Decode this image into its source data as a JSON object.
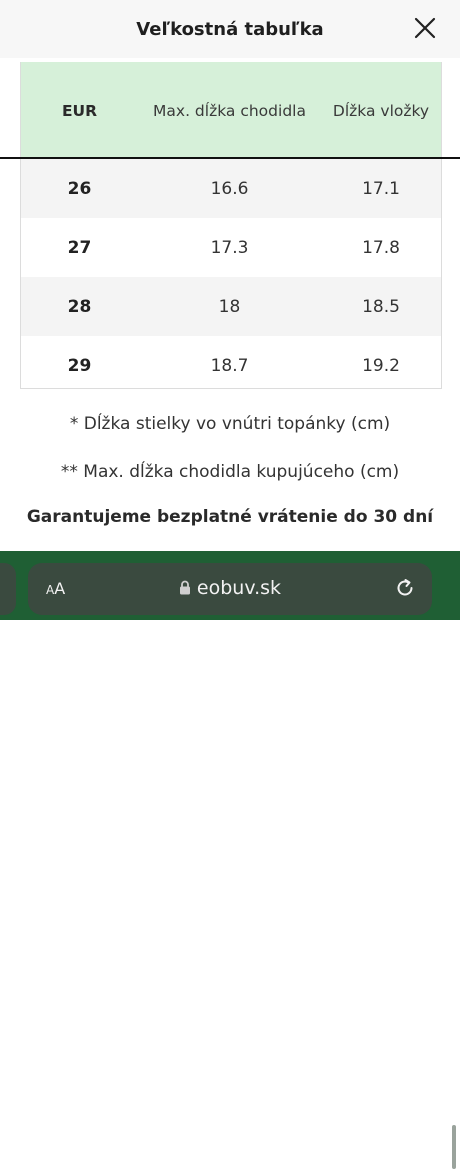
{
  "header": {
    "title": "Veľkostná tabuľka",
    "close_icon": "close-icon"
  },
  "table": {
    "columns": [
      "EUR",
      "Max. dĺžka chodidla",
      "Dĺžka vložky"
    ],
    "rows": [
      [
        "26",
        "16.6",
        "17.1"
      ],
      [
        "27",
        "17.3",
        "17.8"
      ],
      [
        "28",
        "18",
        "18.5"
      ],
      [
        "29",
        "18.7",
        "19.2"
      ]
    ],
    "header_bg": "#d6f0d9"
  },
  "notes": {
    "insole_note": "* Dĺžka stielky vo vnútri topánky (cm)",
    "foot_note": "** Max. dĺžka chodidla kupujúceho (cm)",
    "guarantee": "Garantujeme bezplatné vrátenie do 30 dní"
  },
  "browser": {
    "text_size_big": "A",
    "text_size_small": "A",
    "url": "eobuv.sk",
    "lock_icon": "lock-icon",
    "reload_icon": "reload-icon",
    "bar_color": "#1f5f34"
  }
}
